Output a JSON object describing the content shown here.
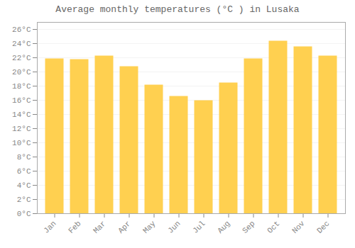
{
  "chart_data": {
    "type": "bar",
    "title": "Average monthly temperatures (°C ) in Lusaka",
    "categories": [
      "Jan",
      "Feb",
      "Mar",
      "Apr",
      "May",
      "Jun",
      "Jul",
      "Aug",
      "Sep",
      "Oct",
      "Nov",
      "Dec"
    ],
    "values": [
      21.8,
      21.7,
      22.2,
      20.7,
      18.1,
      16.5,
      15.9,
      18.4,
      21.8,
      24.3,
      23.5,
      22.2
    ],
    "color": "#FFD050",
    "ylim": [
      0,
      27
    ],
    "yticks": [
      {
        "value": 0,
        "label": "0°C"
      },
      {
        "value": 2,
        "label": "2°C"
      },
      {
        "value": 4,
        "label": "4°C"
      },
      {
        "value": 6,
        "label": "6°C"
      },
      {
        "value": 8,
        "label": "8°C"
      },
      {
        "value": 10,
        "label": "10°C"
      },
      {
        "value": 12,
        "label": "12°C"
      },
      {
        "value": 14,
        "label": "14°C"
      },
      {
        "value": 16,
        "label": "16°C"
      },
      {
        "value": 18,
        "label": "18°C"
      },
      {
        "value": 20,
        "label": "20°C"
      },
      {
        "value": 22,
        "label": "22°C"
      },
      {
        "value": 24,
        "label": "24°C"
      },
      {
        "value": 26,
        "label": "26°C"
      }
    ],
    "grid": true
  }
}
